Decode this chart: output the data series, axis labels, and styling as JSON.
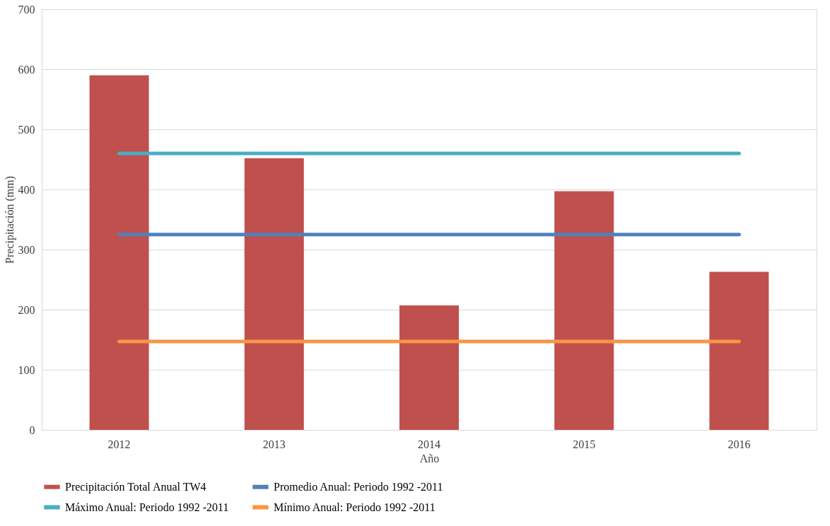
{
  "chart_data": {
    "type": "bar",
    "xlabel": "Año",
    "ylabel": "Precipitación (mm)",
    "categories": [
      "2012",
      "2013",
      "2014",
      "2015",
      "2016"
    ],
    "series": [
      {
        "name": "Precipitación Total Anual TW4",
        "color": "#c0504d",
        "values": [
          590,
          452,
          207,
          397,
          263
        ]
      },
      {
        "name": "Promedio Anual: Periodo 1992 -2011",
        "type": "line",
        "color": "#4f81bd",
        "values": [
          325,
          325,
          325,
          325,
          325
        ]
      },
      {
        "name": "Máximo Anual: Periodo 1992 -2011",
        "type": "line",
        "color": "#4bacc6",
        "values": [
          460,
          460,
          460,
          460,
          460
        ]
      },
      {
        "name": "Mínimo Anual: Periodo 1992 -2011",
        "type": "line",
        "color": "#f79646",
        "values": [
          147,
          147,
          147,
          147,
          147
        ]
      }
    ],
    "ylim": [
      0,
      700
    ],
    "yticks": [
      0,
      100,
      200,
      300,
      400,
      500,
      600,
      700
    ],
    "grid": "y",
    "legend": "bottom",
    "marker": "none",
    "line_style": "solid"
  }
}
